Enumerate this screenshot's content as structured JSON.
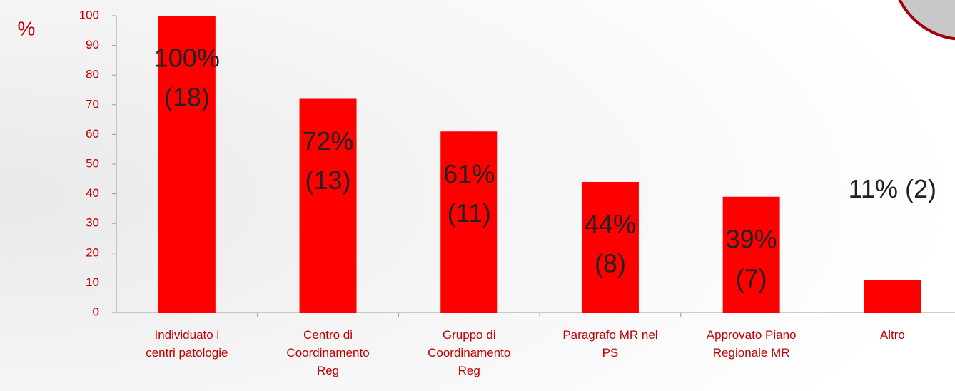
{
  "chart_data": {
    "type": "bar",
    "y_axis_label": "%",
    "categories": [
      "Individuato i centri patologie",
      "Centro di Coordinamento Reg",
      "Gruppo di Coordinamento Reg",
      "Paragrafo MR nel PS",
      "Approvato Piano Regionale MR",
      "Altro"
    ],
    "values": [
      100,
      72,
      61,
      44,
      39,
      11
    ],
    "value_labels": [
      [
        "100%",
        "(18)"
      ],
      [
        "72%",
        "(13)"
      ],
      [
        "61%",
        "(11)"
      ],
      [
        "44%",
        "(8)"
      ],
      [
        "39%",
        "(7)"
      ],
      [
        "11% (2)"
      ]
    ],
    "color": "#ff0000",
    "ylim": [
      0,
      100
    ],
    "yticks": [
      0,
      10,
      20,
      30,
      40,
      50,
      60,
      70,
      80,
      90,
      100
    ]
  }
}
